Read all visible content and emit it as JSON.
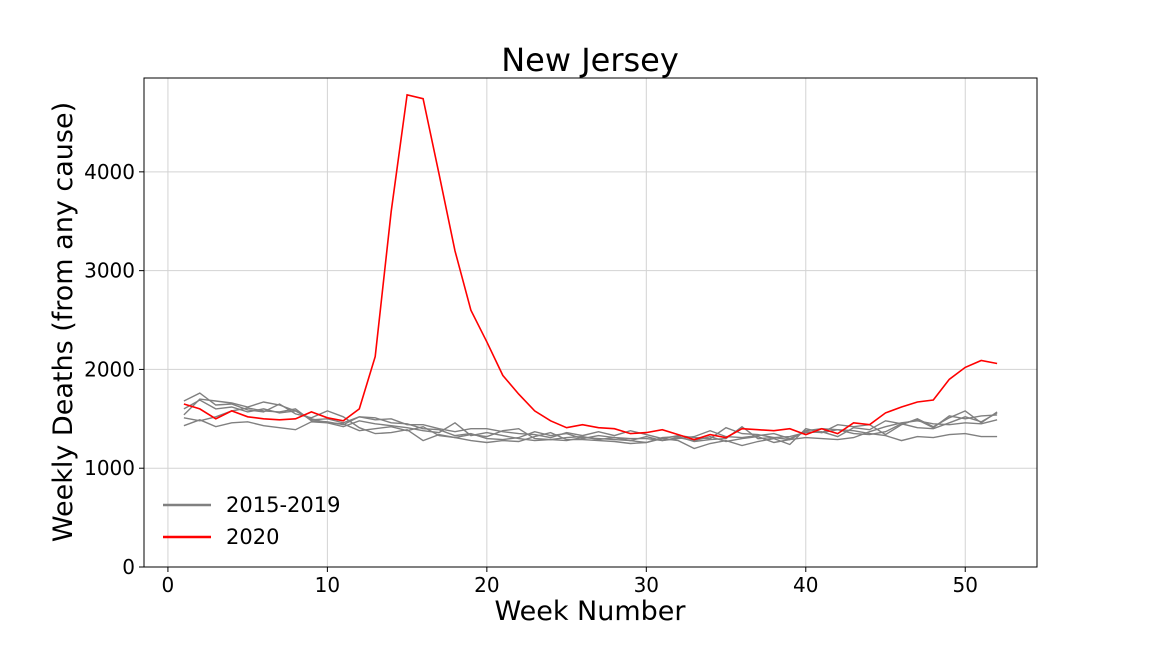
{
  "chart_data": {
    "type": "line",
    "title": "New Jersey",
    "xlabel": "Week Number",
    "ylabel": "Weekly Deaths (from any cause)",
    "xlim": [
      -1.5,
      54.5
    ],
    "ylim": [
      0,
      4950
    ],
    "xticks": [
      0,
      10,
      20,
      30,
      40,
      50
    ],
    "yticks": [
      0,
      1000,
      2000,
      3000,
      4000
    ],
    "grid": true,
    "legend_position": "lower-left",
    "legend": [
      {
        "label": "2015-2019",
        "color": "#808080"
      },
      {
        "label": "2020",
        "color": "#ff0000"
      }
    ],
    "x": [
      1,
      2,
      3,
      4,
      5,
      6,
      7,
      8,
      9,
      10,
      11,
      12,
      13,
      14,
      15,
      16,
      17,
      18,
      19,
      20,
      21,
      22,
      23,
      24,
      25,
      26,
      27,
      28,
      29,
      30,
      31,
      32,
      33,
      34,
      35,
      36,
      37,
      38,
      39,
      40,
      41,
      42,
      43,
      44,
      45,
      46,
      47,
      48,
      49,
      50,
      51,
      52
    ],
    "series": [
      {
        "group": "2015-2019",
        "color": "#808080",
        "values": [
          1680,
          1760,
          1640,
          1650,
          1590,
          1570,
          1650,
          1550,
          1510,
          1580,
          1520,
          1410,
          1350,
          1360,
          1390,
          1280,
          1340,
          1310,
          1280,
          1260,
          1280,
          1270,
          1320,
          1360,
          1290,
          1290,
          1280,
          1270,
          1250,
          1260,
          1300,
          1280,
          1200,
          1250,
          1280,
          1230,
          1270,
          1300,
          1240,
          1400,
          1360,
          1390,
          1380,
          1350,
          1330,
          1280,
          1320,
          1310,
          1340,
          1350,
          1320,
          1320
        ]
      },
      {
        "group": "2015-2019",
        "color": "#808080",
        "values": [
          1540,
          1700,
          1680,
          1660,
          1620,
          1670,
          1640,
          1580,
          1500,
          1460,
          1420,
          1480,
          1450,
          1430,
          1410,
          1380,
          1360,
          1460,
          1330,
          1360,
          1330,
          1300,
          1280,
          1290,
          1280,
          1310,
          1300,
          1290,
          1280,
          1260,
          1310,
          1320,
          1270,
          1290,
          1300,
          1420,
          1300,
          1310,
          1290,
          1380,
          1400,
          1390,
          1350,
          1340,
          1370,
          1450,
          1410,
          1400,
          1460,
          1520,
          1470,
          1560
        ]
      },
      {
        "group": "2015-2019",
        "color": "#808080",
        "values": [
          1430,
          1490,
          1420,
          1460,
          1470,
          1430,
          1410,
          1390,
          1470,
          1460,
          1450,
          1380,
          1400,
          1420,
          1380,
          1420,
          1330,
          1310,
          1340,
          1320,
          1380,
          1400,
          1300,
          1290,
          1310,
          1320,
          1290,
          1310,
          1300,
          1300,
          1280,
          1310,
          1280,
          1320,
          1270,
          1300,
          1320,
          1260,
          1290,
          1310,
          1300,
          1290,
          1310,
          1370,
          1420,
          1460,
          1480,
          1450,
          1440,
          1460,
          1450,
          1490
        ]
      },
      {
        "group": "2015-2019",
        "color": "#808080",
        "values": [
          1600,
          1690,
          1600,
          1620,
          1570,
          1600,
          1560,
          1580,
          1490,
          1500,
          1460,
          1520,
          1510,
          1460,
          1450,
          1400,
          1390,
          1330,
          1350,
          1300,
          1290,
          1310,
          1370,
          1330,
          1350,
          1300,
          1330,
          1310,
          1280,
          1320,
          1280,
          1300,
          1320,
          1380,
          1320,
          1310,
          1330,
          1350,
          1300,
          1370,
          1360,
          1440,
          1420,
          1440,
          1340,
          1440,
          1500,
          1420,
          1510,
          1580,
          1460,
          1570
        ]
      },
      {
        "group": "2015-2019",
        "color": "#808080",
        "values": [
          1510,
          1480,
          1520,
          1580,
          1610,
          1580,
          1570,
          1600,
          1480,
          1470,
          1440,
          1520,
          1490,
          1500,
          1440,
          1440,
          1400,
          1370,
          1400,
          1400,
          1370,
          1350,
          1340,
          1310,
          1360,
          1330,
          1370,
          1330,
          1380,
          1340,
          1300,
          1330,
          1310,
          1300,
          1410,
          1350,
          1340,
          1310,
          1320,
          1360,
          1370,
          1320,
          1410,
          1390,
          1480,
          1450,
          1490,
          1410,
          1530,
          1500,
          1530,
          1540
        ]
      },
      {
        "group": "2020",
        "color": "#ff0000",
        "values": [
          1650,
          1600,
          1500,
          1580,
          1520,
          1500,
          1490,
          1500,
          1570,
          1510,
          1480,
          1600,
          2130,
          3600,
          4780,
          4740,
          3980,
          3200,
          2600,
          2280,
          1940,
          1750,
          1580,
          1480,
          1410,
          1440,
          1410,
          1400,
          1350,
          1360,
          1390,
          1340,
          1290,
          1340,
          1310,
          1400,
          1390,
          1380,
          1400,
          1340,
          1400,
          1350,
          1460,
          1440,
          1560,
          1620,
          1670,
          1690,
          1900,
          2020,
          2090,
          2060
        ]
      }
    ]
  }
}
